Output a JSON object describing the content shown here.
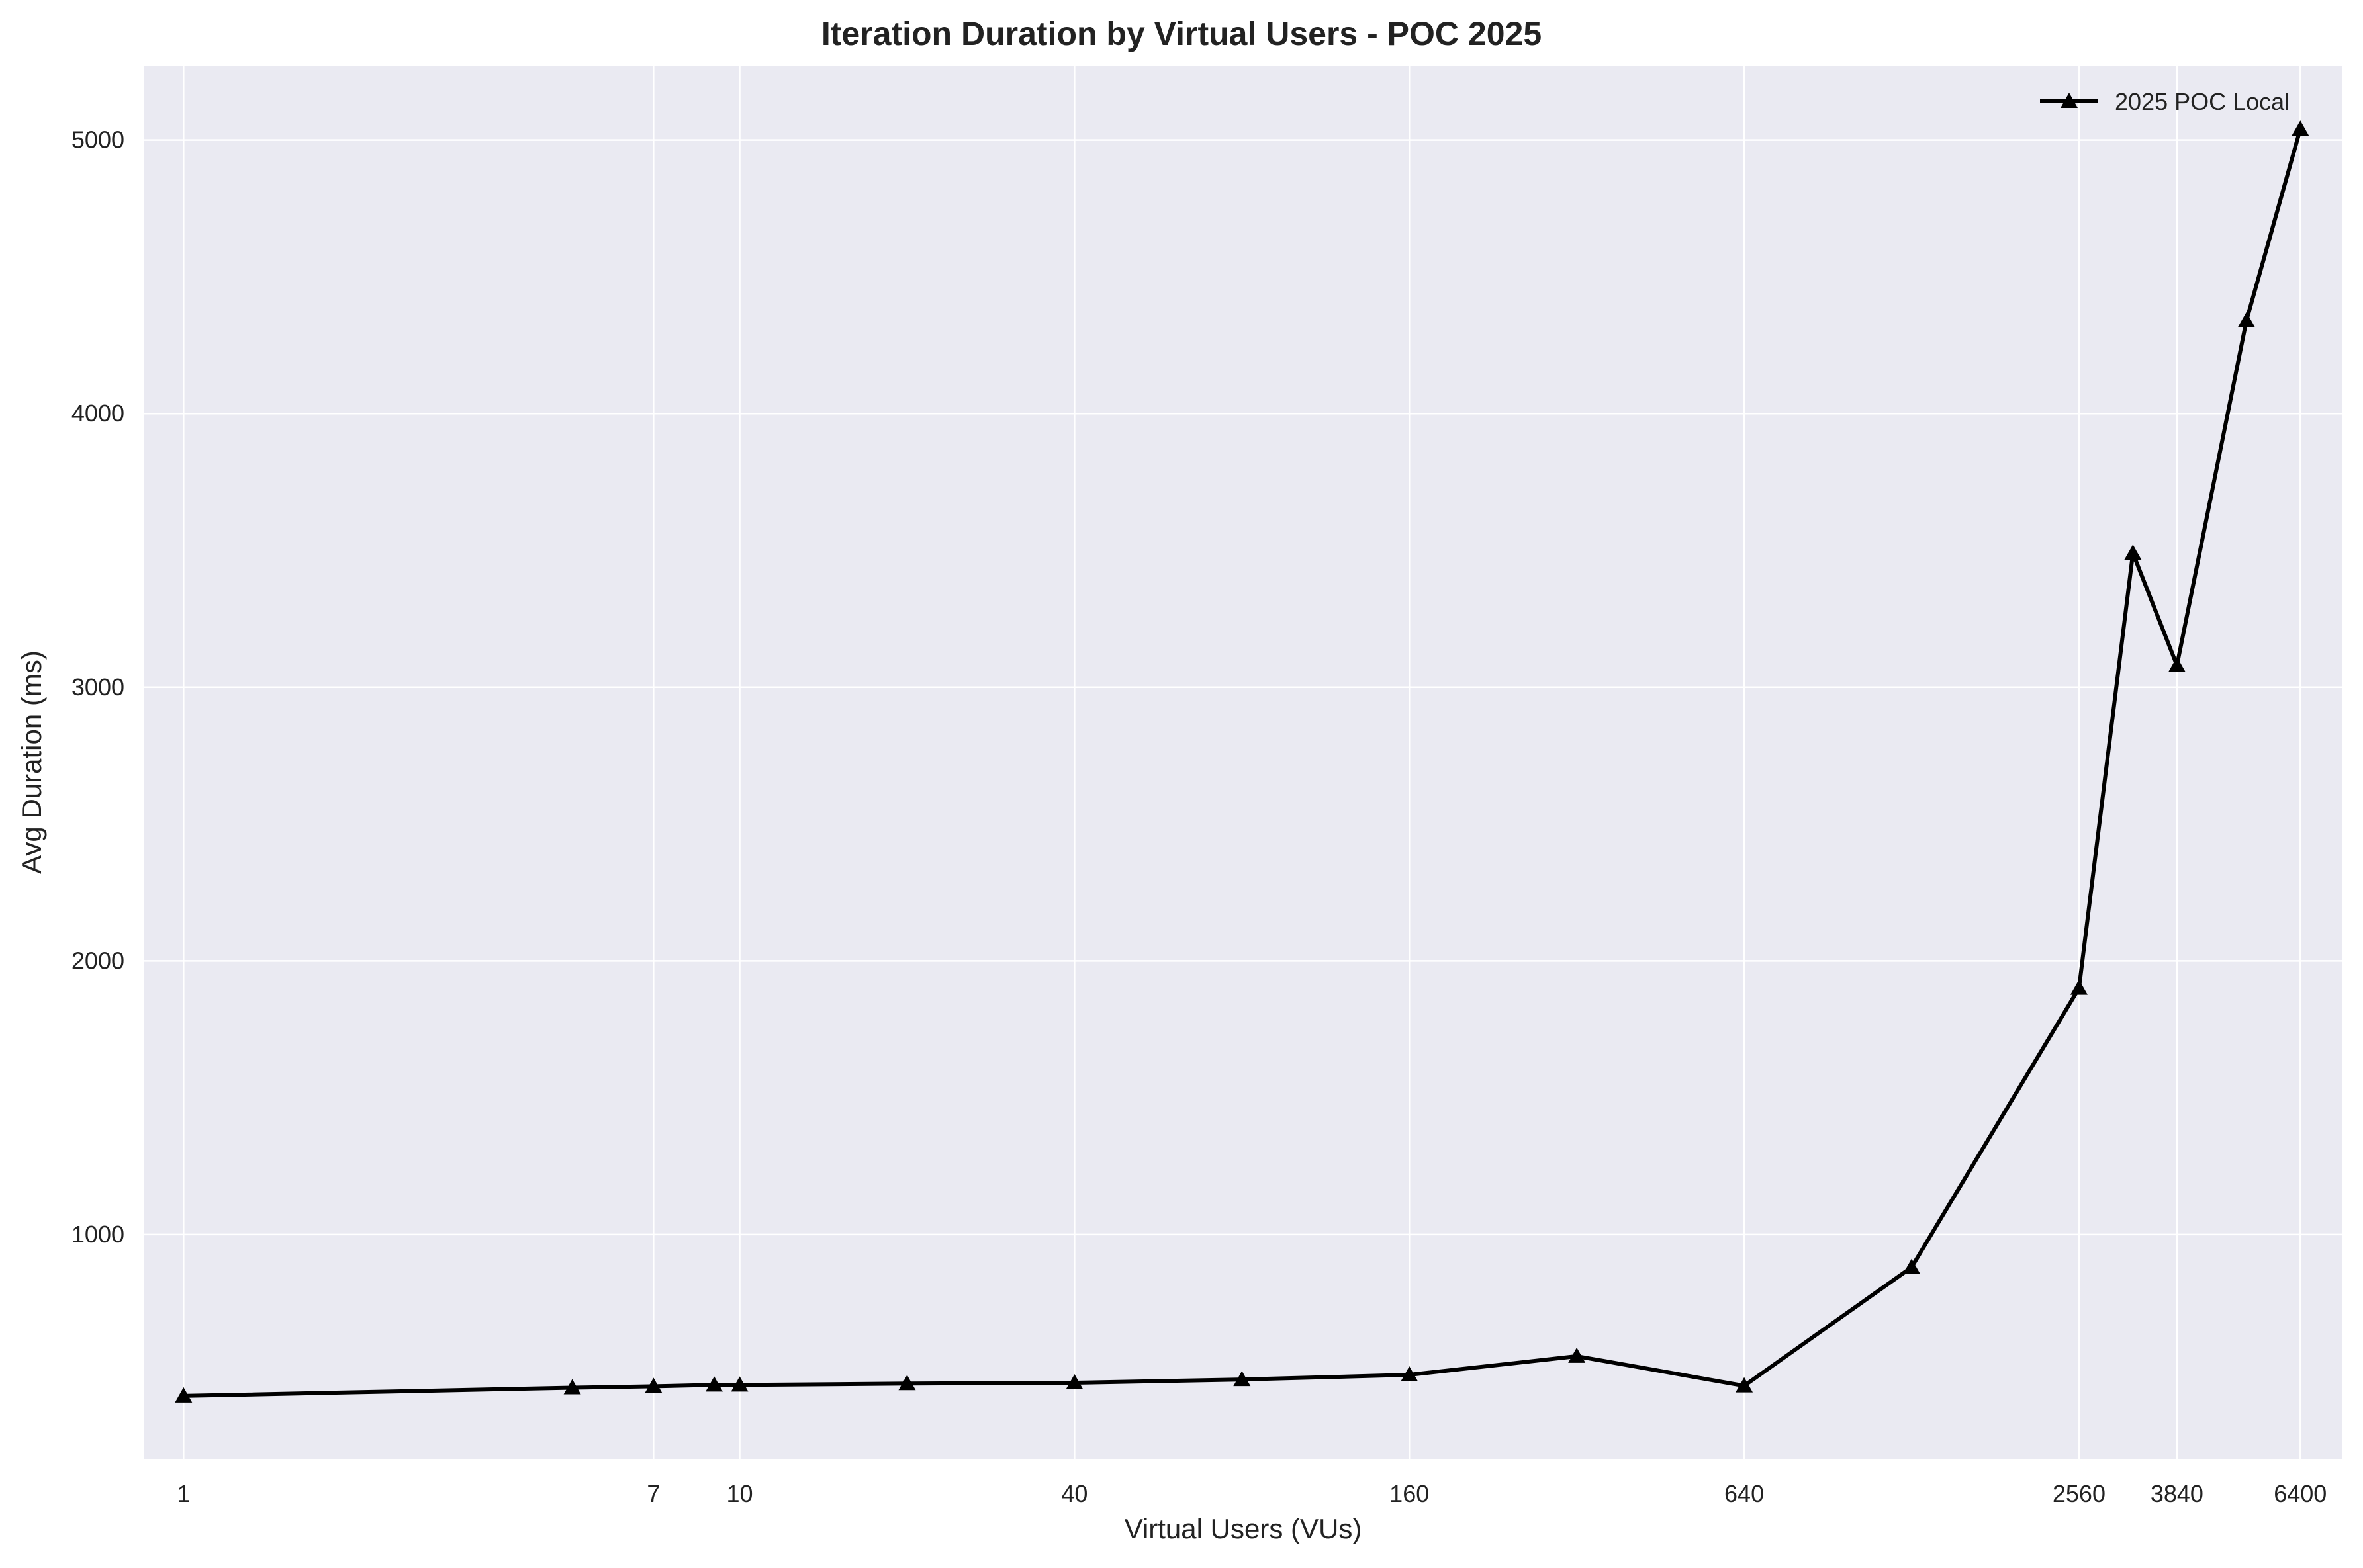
{
  "chart_data": {
    "type": "line",
    "title": "Iteration Duration by Virtual Users - POC 2025",
    "xlabel": "Virtual Users (VUs)",
    "ylabel": "Avg Duration (ms)",
    "x_scale": "log",
    "xlim": [
      0.85,
      7600
    ],
    "ylim": [
      180,
      5270
    ],
    "x_ticks": [
      1,
      7,
      10,
      40,
      160,
      640,
      2560,
      3840,
      6400
    ],
    "x_tick_labels": [
      "1",
      "7",
      "10",
      "40",
      "160",
      "640",
      "2560",
      "3840",
      "6400"
    ],
    "y_ticks": [
      1000,
      2000,
      3000,
      4000,
      5000
    ],
    "y_tick_labels": [
      "1000",
      "2000",
      "3000",
      "4000",
      "5000"
    ],
    "grid": true,
    "legend_position": "top-right",
    "series": [
      {
        "name": "2025 POC Local",
        "color": "#000000",
        "marker": "triangle",
        "x": [
          1,
          5,
          7,
          9,
          10,
          20,
          40,
          80,
          160,
          320,
          640,
          1280,
          2560,
          3200,
          3840,
          5120,
          6400
        ],
        "y": [
          410,
          440,
          445,
          450,
          450,
          455,
          458,
          470,
          487,
          555,
          447,
          880,
          1900,
          3490,
          3080,
          4340,
          5040
        ]
      }
    ]
  }
}
